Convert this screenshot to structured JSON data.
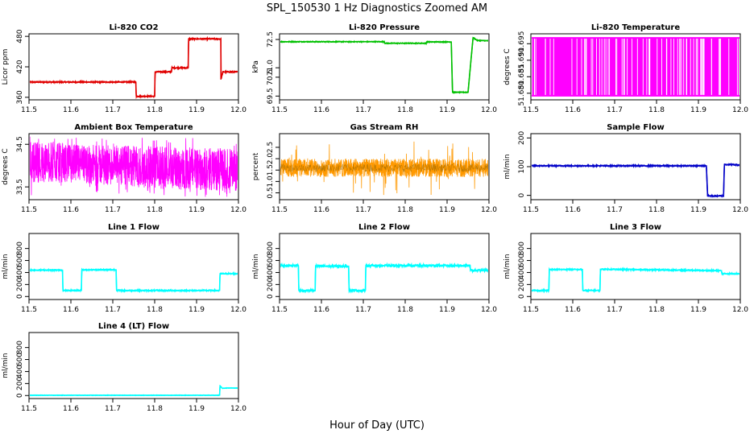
{
  "title": "SPL_150530 1 Hz Diagnostics Zoomed AM",
  "xlabel": "Hour of Day (UTC)",
  "colors": {
    "red": "#e00000",
    "green": "#00c000",
    "magenta": "#ff00ff",
    "orange": "#ff9900",
    "blue": "#0000c8",
    "cyan": "#00ffff"
  },
  "chart_data": [
    {
      "id": "co2",
      "type": "line",
      "title": "Li-820 CO2",
      "ylabel": "Licor ppm",
      "color": "red",
      "xlim": [
        11.5,
        12.0
      ],
      "ylim": [
        355,
        485
      ],
      "xticks": [
        "11.5",
        "11.6",
        "11.7",
        "11.8",
        "11.9",
        "12.0"
      ],
      "yticks": [
        "360",
        "420",
        "480"
      ],
      "noise": 1.2,
      "series": [
        [
          11.5,
          390
        ],
        [
          11.755,
          390
        ],
        [
          11.756,
          362
        ],
        [
          11.8,
          362
        ],
        [
          11.801,
          410
        ],
        [
          11.84,
          410
        ],
        [
          11.841,
          418
        ],
        [
          11.88,
          418
        ],
        [
          11.881,
          475
        ],
        [
          11.958,
          475
        ],
        [
          11.958,
          395
        ],
        [
          11.963,
          410
        ],
        [
          12.0,
          410
        ]
      ]
    },
    {
      "id": "pressure",
      "type": "line",
      "title": "Li-820 Pressure",
      "ylabel": "kPa",
      "color": "green",
      "xlim": [
        11.5,
        12.0
      ],
      "ylim": [
        69.3,
        72.8
      ],
      "xticks": [
        "11.5",
        "11.6",
        "11.7",
        "11.8",
        "11.9",
        "12.0"
      ],
      "yticks": [
        "69.5",
        "70.5",
        "71.0",
        "72.5"
      ],
      "yticks_values": [
        69.5,
        70.5,
        71.0,
        72.5
      ],
      "noise": 0.02,
      "series": [
        [
          11.5,
          72.38
        ],
        [
          11.75,
          72.38
        ],
        [
          11.751,
          72.3
        ],
        [
          11.85,
          72.3
        ],
        [
          11.851,
          72.37
        ],
        [
          11.91,
          72.37
        ],
        [
          11.913,
          69.7
        ],
        [
          11.95,
          69.7
        ],
        [
          11.962,
          72.6
        ],
        [
          11.972,
          72.45
        ],
        [
          12.0,
          72.43
        ]
      ]
    },
    {
      "id": "temperature",
      "type": "band",
      "title": "Li-820 Temperature",
      "ylabel": "degrees C",
      "color": "magenta",
      "xlim": [
        11.5,
        12.0
      ],
      "ylim": [
        51.678,
        51.698
      ],
      "xticks": [
        "11.5",
        "11.6",
        "11.7",
        "11.8",
        "11.9",
        "12.0"
      ],
      "yticks": [
        "51.680",
        "51.685",
        "51.690",
        "51.695"
      ],
      "yticks_values": [
        51.68,
        51.685,
        51.69,
        51.695
      ],
      "band": [
        51.679,
        51.697
      ]
    },
    {
      "id": "ambient",
      "type": "noise",
      "title": "Ambient Box Temperature",
      "ylabel": "degrees C",
      "color": "magenta",
      "xlim": [
        11.5,
        12.0
      ],
      "ylim": [
        33.2,
        34.75
      ],
      "xticks": [
        "11.5",
        "11.6",
        "11.7",
        "11.8",
        "11.9",
        "12.0"
      ],
      "yticks": [
        "33.5",
        "34.5"
      ],
      "yticks_values": [
        33.5,
        34.5
      ],
      "base": [
        [
          11.5,
          33.6,
          34.6
        ],
        [
          11.6,
          33.6,
          34.5
        ],
        [
          11.8,
          33.45,
          34.45
        ],
        [
          12.0,
          33.4,
          34.4
        ]
      ]
    },
    {
      "id": "rh",
      "type": "noise",
      "title": "Gas Stream RH",
      "ylabel": "percent",
      "color": "orange",
      "xlim": [
        11.5,
        12.0
      ],
      "ylim": [
        0.2,
        3.1
      ],
      "xticks": [
        "11.5",
        "11.6",
        "11.7",
        "11.8",
        "11.9",
        "12.0"
      ],
      "yticks": [
        "0.5",
        "1.0",
        "1.5",
        "2.0",
        "2.5"
      ],
      "yticks_values": [
        0.5,
        1.0,
        1.5,
        2.0,
        2.5
      ],
      "base": [
        [
          11.5,
          1.2,
          2.0
        ],
        [
          12.0,
          1.2,
          2.0
        ]
      ]
    },
    {
      "id": "sample",
      "type": "line",
      "title": "Sample Flow",
      "ylabel": "ml/min",
      "color": "blue",
      "xlim": [
        11.5,
        12.0
      ],
      "ylim": [
        -15,
        215
      ],
      "xticks": [
        "11.5",
        "11.6",
        "11.7",
        "11.8",
        "11.9",
        "12.0"
      ],
      "yticks": [
        "0",
        "100",
        "200"
      ],
      "yticks_values": [
        0,
        100,
        200
      ],
      "noise": 2,
      "series": [
        [
          11.5,
          103
        ],
        [
          11.919,
          103
        ],
        [
          11.922,
          -2
        ],
        [
          11.96,
          -2
        ],
        [
          11.962,
          108
        ],
        [
          12.0,
          106
        ]
      ]
    },
    {
      "id": "line1",
      "type": "line",
      "title": "Line 1 Flow",
      "ylabel": "ml/min",
      "color": "cyan",
      "xlim": [
        11.5,
        12.0
      ],
      "ylim": [
        -50,
        1050
      ],
      "xticks": [
        "11.5",
        "11.6",
        "11.7",
        "11.8",
        "11.9",
        "12.0"
      ],
      "yticks": [
        "0",
        "200",
        "400",
        "600",
        "800"
      ],
      "yticks_values": [
        0,
        200,
        400,
        600,
        800
      ],
      "noise": 10,
      "series": [
        [
          11.5,
          440
        ],
        [
          11.58,
          440
        ],
        [
          11.581,
          100
        ],
        [
          11.625,
          100
        ],
        [
          11.626,
          445
        ],
        [
          11.708,
          445
        ],
        [
          11.709,
          100
        ],
        [
          11.955,
          100
        ],
        [
          11.956,
          380
        ],
        [
          12.0,
          380
        ]
      ]
    },
    {
      "id": "line2",
      "type": "line",
      "title": "Line 2 Flow",
      "ylabel": "ml/min",
      "color": "cyan",
      "xlim": [
        11.5,
        12.0
      ],
      "ylim": [
        -50,
        1050
      ],
      "xticks": [
        "11.5",
        "11.6",
        "11.7",
        "11.8",
        "11.9",
        "12.0"
      ],
      "yticks": [
        "0",
        "200",
        "400",
        "600",
        "800"
      ],
      "yticks_values": [
        0,
        200,
        400,
        600,
        800
      ],
      "noise": 18,
      "series": [
        [
          11.5,
          515
        ],
        [
          11.545,
          515
        ],
        [
          11.546,
          100
        ],
        [
          11.585,
          100
        ],
        [
          11.586,
          505
        ],
        [
          11.665,
          505
        ],
        [
          11.666,
          100
        ],
        [
          11.705,
          100
        ],
        [
          11.706,
          515
        ],
        [
          11.955,
          515
        ],
        [
          11.956,
          435
        ],
        [
          12.0,
          435
        ]
      ]
    },
    {
      "id": "line3",
      "type": "line",
      "title": "Line 3 Flow",
      "ylabel": "ml/min",
      "color": "cyan",
      "xlim": [
        11.5,
        12.0
      ],
      "ylim": [
        -50,
        1050
      ],
      "xticks": [
        "11.5",
        "11.6",
        "11.7",
        "11.8",
        "11.9",
        "12.0"
      ],
      "yticks": [
        "0",
        "200",
        "400",
        "600",
        "800"
      ],
      "yticks_values": [
        0,
        200,
        400,
        600,
        800
      ],
      "noise": 10,
      "series": [
        [
          11.5,
          100
        ],
        [
          11.543,
          100
        ],
        [
          11.544,
          450
        ],
        [
          11.623,
          450
        ],
        [
          11.624,
          100
        ],
        [
          11.665,
          100
        ],
        [
          11.666,
          455
        ],
        [
          11.955,
          430
        ],
        [
          11.956,
          380
        ],
        [
          12.0,
          380
        ]
      ]
    },
    {
      "id": "line4",
      "type": "line",
      "title": "Line 4 (LT) Flow",
      "ylabel": "ml/min",
      "color": "cyan",
      "xlim": [
        11.5,
        12.0
      ],
      "ylim": [
        -50,
        1050
      ],
      "xticks": [
        "11.5",
        "11.6",
        "11.7",
        "11.8",
        "11.9",
        "12.0"
      ],
      "yticks": [
        "0",
        "200",
        "400",
        "600",
        "800"
      ],
      "yticks_values": [
        0,
        200,
        400,
        600,
        800
      ],
      "noise": 3,
      "series": [
        [
          11.5,
          5
        ],
        [
          11.955,
          5
        ],
        [
          11.956,
          160
        ],
        [
          11.962,
          120
        ],
        [
          11.97,
          125
        ],
        [
          12.0,
          125
        ]
      ]
    }
  ]
}
